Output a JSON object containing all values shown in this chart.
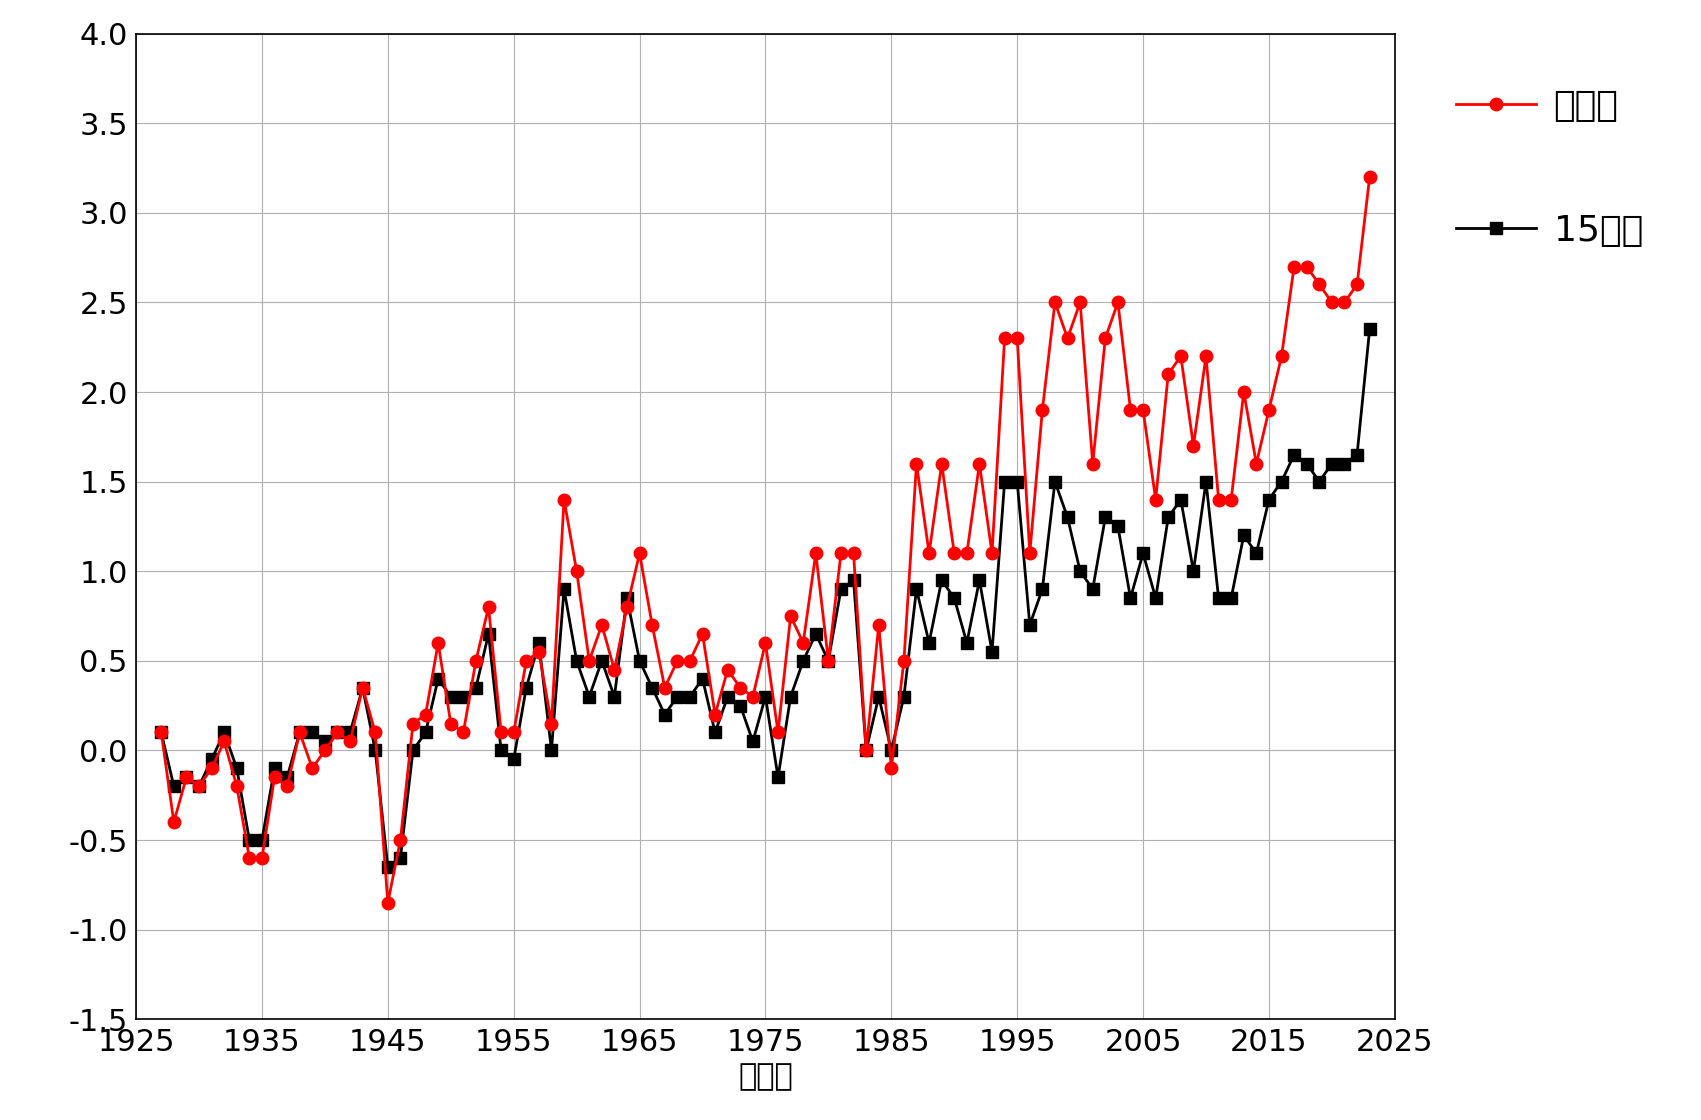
{
  "xlabel": "（年）",
  "xlim": [
    1925,
    2025
  ],
  "ylim": [
    -1.5,
    4.0
  ],
  "xticks": [
    1925,
    1935,
    1945,
    1955,
    1965,
    1975,
    1985,
    1995,
    2005,
    2015,
    2025
  ],
  "yticks": [
    -1.5,
    -1.0,
    -0.5,
    0.0,
    0.5,
    1.0,
    1.5,
    2.0,
    2.5,
    3.0,
    3.5,
    4.0
  ],
  "ytick_labels": [
    "-1.5",
    "-1.0",
    "-0.5",
    "0.0",
    "0.5",
    "1.0",
    "1.5",
    "2.0",
    "2.5",
    "3.0",
    "3.5",
    "4.0"
  ],
  "nagoya_years": [
    1927,
    1928,
    1929,
    1930,
    1931,
    1932,
    1933,
    1934,
    1935,
    1936,
    1937,
    1938,
    1939,
    1940,
    1941,
    1942,
    1943,
    1944,
    1945,
    1946,
    1947,
    1948,
    1949,
    1950,
    1951,
    1952,
    1953,
    1954,
    1955,
    1956,
    1957,
    1958,
    1959,
    1960,
    1961,
    1962,
    1963,
    1964,
    1965,
    1966,
    1967,
    1968,
    1969,
    1970,
    1971,
    1972,
    1973,
    1974,
    1975,
    1976,
    1977,
    1978,
    1979,
    1980,
    1981,
    1982,
    1983,
    1984,
    1985,
    1986,
    1987,
    1988,
    1989,
    1990,
    1991,
    1992,
    1993,
    1994,
    1995,
    1996,
    1997,
    1998,
    1999,
    2000,
    2001,
    2002,
    2003,
    2004,
    2005,
    2006,
    2007,
    2008,
    2009,
    2010,
    2011,
    2012,
    2013,
    2014,
    2015,
    2016,
    2017,
    2018,
    2019,
    2020,
    2021,
    2022,
    2023
  ],
  "nagoya_vals": [
    0.1,
    -0.4,
    -0.15,
    -0.2,
    -0.1,
    0.05,
    -0.2,
    -0.6,
    -0.6,
    -0.15,
    -0.2,
    0.1,
    -0.1,
    0.0,
    0.1,
    0.05,
    0.35,
    0.1,
    -0.85,
    -0.5,
    0.15,
    0.2,
    0.6,
    0.15,
    0.1,
    0.5,
    0.8,
    0.1,
    0.1,
    0.5,
    0.55,
    0.15,
    1.4,
    1.0,
    0.5,
    0.7,
    0.45,
    0.8,
    1.1,
    0.7,
    0.35,
    0.5,
    0.5,
    0.65,
    0.2,
    0.45,
    0.35,
    0.3,
    0.6,
    0.1,
    0.75,
    0.6,
    1.1,
    0.5,
    1.1,
    1.1,
    0.0,
    0.7,
    -0.1,
    0.5,
    1.6,
    1.1,
    1.6,
    1.1,
    1.1,
    1.6,
    1.1,
    2.3,
    2.3,
    1.1,
    1.9,
    2.5,
    2.3,
    2.5,
    1.6,
    2.3,
    2.5,
    1.9,
    1.9,
    1.4,
    2.1,
    2.2,
    1.7,
    2.2,
    1.4,
    1.4,
    2.0,
    1.6,
    1.9,
    2.2,
    2.7,
    2.7,
    2.6,
    2.5,
    2.5,
    2.6,
    3.2
  ],
  "pt15_years": [
    1927,
    1928,
    1929,
    1930,
    1931,
    1932,
    1933,
    1934,
    1935,
    1936,
    1937,
    1938,
    1939,
    1940,
    1941,
    1942,
    1943,
    1944,
    1945,
    1946,
    1947,
    1948,
    1949,
    1950,
    1951,
    1952,
    1953,
    1954,
    1955,
    1956,
    1957,
    1958,
    1959,
    1960,
    1961,
    1962,
    1963,
    1964,
    1965,
    1966,
    1967,
    1968,
    1969,
    1970,
    1971,
    1972,
    1973,
    1974,
    1975,
    1976,
    1977,
    1978,
    1979,
    1980,
    1981,
    1982,
    1983,
    1984,
    1985,
    1986,
    1987,
    1988,
    1989,
    1990,
    1991,
    1992,
    1993,
    1994,
    1995,
    1996,
    1997,
    1998,
    1999,
    2000,
    2001,
    2002,
    2003,
    2004,
    2005,
    2006,
    2007,
    2008,
    2009,
    2010,
    2011,
    2012,
    2013,
    2014,
    2015,
    2016,
    2017,
    2018,
    2019,
    2020,
    2021,
    2022,
    2023
  ],
  "pt15_vals": [
    0.1,
    -0.2,
    -0.15,
    -0.2,
    -0.05,
    0.1,
    -0.1,
    -0.5,
    -0.5,
    -0.1,
    -0.15,
    0.1,
    0.1,
    0.05,
    0.1,
    0.1,
    0.35,
    0.0,
    -0.65,
    -0.6,
    0.0,
    0.1,
    0.4,
    0.3,
    0.3,
    0.35,
    0.65,
    0.0,
    -0.05,
    0.35,
    0.6,
    0.0,
    0.9,
    0.5,
    0.3,
    0.5,
    0.3,
    0.85,
    0.5,
    0.35,
    0.2,
    0.3,
    0.3,
    0.4,
    0.1,
    0.3,
    0.25,
    0.05,
    0.3,
    -0.15,
    0.3,
    0.5,
    0.65,
    0.5,
    0.9,
    0.95,
    0.0,
    0.3,
    0.0,
    0.3,
    0.9,
    0.6,
    0.95,
    0.85,
    0.6,
    0.95,
    0.55,
    1.5,
    1.5,
    0.7,
    0.9,
    1.5,
    1.3,
    1.0,
    0.9,
    1.3,
    1.25,
    0.85,
    1.1,
    0.85,
    1.3,
    1.4,
    1.0,
    1.5,
    0.85,
    0.85,
    1.2,
    1.1,
    1.4,
    1.5,
    1.65,
    1.6,
    1.5,
    1.6,
    1.6,
    1.65,
    2.35
  ],
  "nagoya_color": "#FF0000",
  "pt15_color": "#000000",
  "bg_color": "#ffffff",
  "outer_bg": "#ffffff",
  "legend_nagoya": "名古屋",
  "legend_pt15": "15地点",
  "tick_font_size": 22,
  "label_font_size": 22,
  "legend_font_size": 26,
  "marker_size": 9,
  "line_width": 2.0
}
